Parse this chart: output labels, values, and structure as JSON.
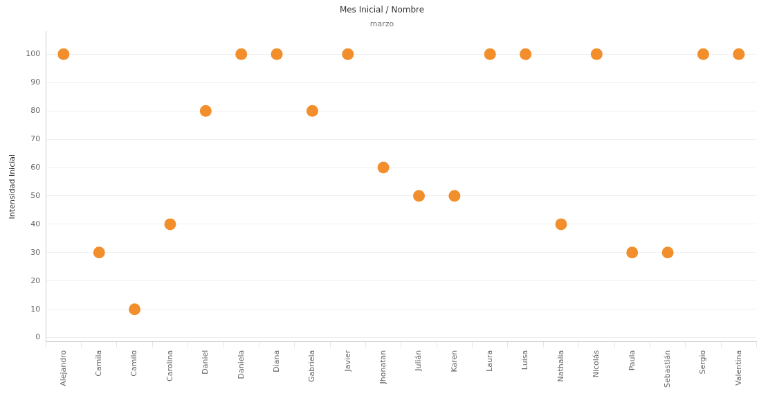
{
  "chart_data": {
    "type": "scatter",
    "title": "Mes Inicial / Nombre",
    "subtitle": "marzo",
    "ylabel": "Intensidad Inicial",
    "categories": [
      "Alejandro",
      "Camila",
      "Camilo",
      "Carolina",
      "Daniel",
      "Daniela",
      "Diana",
      "Gabriela",
      "Javier",
      "Jhonatan",
      "Julián",
      "Karen",
      "Laura",
      "Luisa",
      "Nathalia",
      "Nicolás",
      "Paula",
      "Sebastián",
      "Sergio",
      "Valentina"
    ],
    "values": [
      100,
      30,
      10,
      40,
      80,
      100,
      100,
      80,
      100,
      60,
      50,
      50,
      100,
      100,
      40,
      100,
      30,
      30,
      100,
      100
    ],
    "color": "#f28e2b",
    "marker": "circle",
    "grid": "y",
    "ylim": [
      -1.5,
      108
    ],
    "yticks": [
      0,
      10,
      20,
      30,
      40,
      50,
      60,
      70,
      80,
      90,
      100
    ]
  }
}
